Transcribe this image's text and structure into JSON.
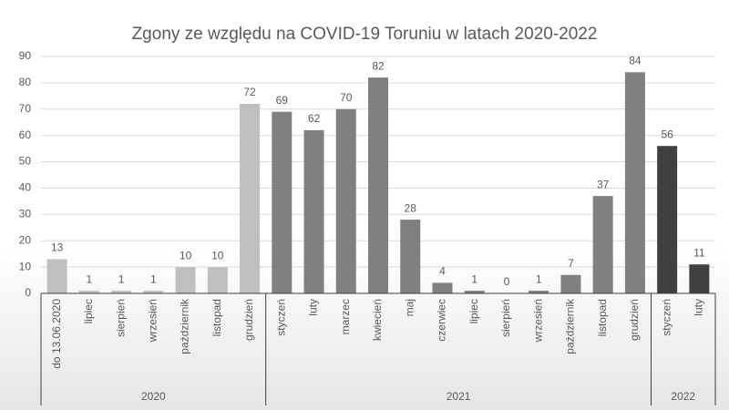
{
  "chart_data": {
    "type": "bar",
    "title": "Zgony ze względu na COVID-19 Toruniu w latach 2020-2022",
    "groups": [
      {
        "name": "2020",
        "color": "#bfbfbf",
        "categories": [
          "do 13.06.2020",
          "lipiec",
          "sierpień",
          "wrzesień",
          "październik",
          "listopad",
          "grudzień"
        ],
        "values": [
          13,
          1,
          1,
          1,
          10,
          10,
          72
        ]
      },
      {
        "name": "2021",
        "color": "#808080",
        "categories": [
          "styczeń",
          "luty",
          "marzec",
          "kwiecień",
          "maj",
          "czerwiec",
          "lipiec",
          "sierpień",
          "wrzesień",
          "październik",
          "listopad",
          "grudzień"
        ],
        "values": [
          69,
          62,
          70,
          82,
          28,
          4,
          1,
          0,
          1,
          7,
          37,
          84
        ]
      },
      {
        "name": "2022",
        "color": "#404040",
        "categories": [
          "styczeń",
          "luty"
        ],
        "values": [
          56,
          11
        ]
      }
    ],
    "ylim": [
      0,
      90
    ],
    "yticks": [
      0,
      10,
      20,
      30,
      40,
      50,
      60,
      70,
      80,
      90
    ],
    "grid": true
  }
}
